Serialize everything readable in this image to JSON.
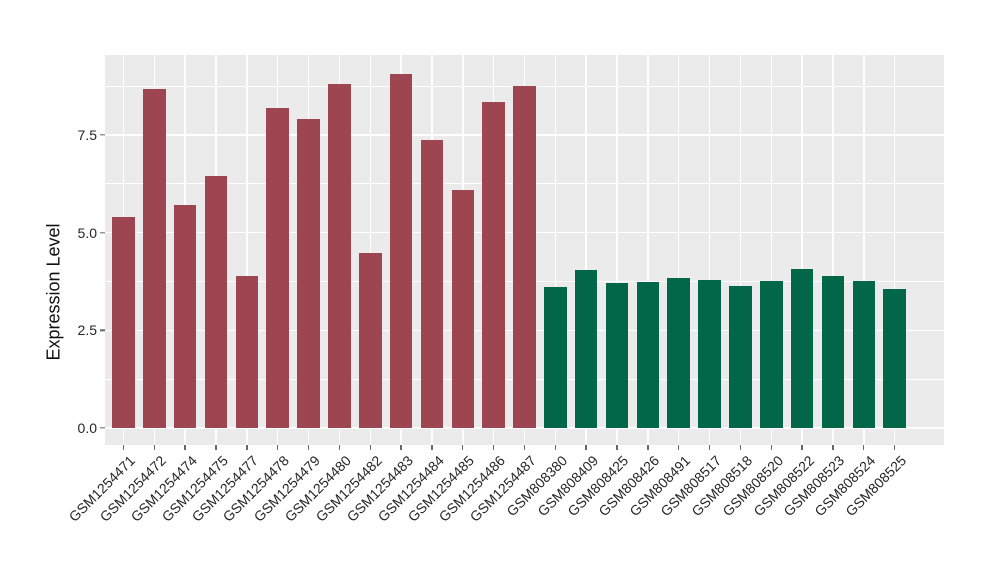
{
  "chart_data": {
    "type": "bar",
    "title": "",
    "xlabel": "",
    "ylabel": "Expression Level",
    "ylim": [
      0,
      9.55
    ],
    "grid": "major and minor horizontal white gridlines, vertical white gridline at each bar center, gray panel background",
    "legend_position": "none",
    "yticks": [
      {
        "label": "0.0",
        "value": 0
      },
      {
        "label": "2.5",
        "value": 2.5
      },
      {
        "label": "5.0",
        "value": 5
      },
      {
        "label": "7.5",
        "value": 7.5
      }
    ],
    "minor_yticks": [
      1.25,
      3.75,
      6.25,
      8.75
    ],
    "palette": {
      "group1": "#9D4551",
      "group2": "#026649"
    },
    "bars": [
      {
        "label": "GSM1254471",
        "value": 5.41,
        "group": "group1"
      },
      {
        "label": "GSM1254472",
        "value": 8.68,
        "group": "group1"
      },
      {
        "label": "GSM1254474",
        "value": 5.71,
        "group": "group1"
      },
      {
        "label": "GSM1254475",
        "value": 6.44,
        "group": "group1"
      },
      {
        "label": "GSM1254477",
        "value": 3.88,
        "group": "group1"
      },
      {
        "label": "GSM1254478",
        "value": 8.18,
        "group": "group1"
      },
      {
        "label": "GSM1254479",
        "value": 7.92,
        "group": "group1"
      },
      {
        "label": "GSM1254480",
        "value": 8.8,
        "group": "group1"
      },
      {
        "label": "GSM1254482",
        "value": 4.48,
        "group": "group1"
      },
      {
        "label": "GSM1254483",
        "value": 9.06,
        "group": "group1"
      },
      {
        "label": "GSM1254484",
        "value": 7.37,
        "group": "group1"
      },
      {
        "label": "GSM1254485",
        "value": 6.08,
        "group": "group1"
      },
      {
        "label": "GSM1254486",
        "value": 8.34,
        "group": "group1"
      },
      {
        "label": "GSM1254487",
        "value": 8.75,
        "group": "group1"
      },
      {
        "label": "GSM808380",
        "value": 3.62,
        "group": "group2"
      },
      {
        "label": "GSM808409",
        "value": 4.04,
        "group": "group2"
      },
      {
        "label": "GSM808425",
        "value": 3.7,
        "group": "group2"
      },
      {
        "label": "GSM808426",
        "value": 3.74,
        "group": "group2"
      },
      {
        "label": "GSM808491",
        "value": 3.84,
        "group": "group2"
      },
      {
        "label": "GSM808517",
        "value": 3.8,
        "group": "group2"
      },
      {
        "label": "GSM808518",
        "value": 3.64,
        "group": "group2"
      },
      {
        "label": "GSM808520",
        "value": 3.77,
        "group": "group2"
      },
      {
        "label": "GSM808522",
        "value": 4.06,
        "group": "group2"
      },
      {
        "label": "GSM808523",
        "value": 3.88,
        "group": "group2"
      },
      {
        "label": "GSM808524",
        "value": 3.75,
        "group": "group2"
      },
      {
        "label": "GSM808525",
        "value": 3.57,
        "group": "group2"
      }
    ],
    "colors": {
      "panel_background": "#EBEBEB",
      "gridline": "#FFFFFF",
      "tick_mark": "#666666",
      "axis_text": "#262626",
      "figure_background": "#FFFFFF"
    }
  }
}
